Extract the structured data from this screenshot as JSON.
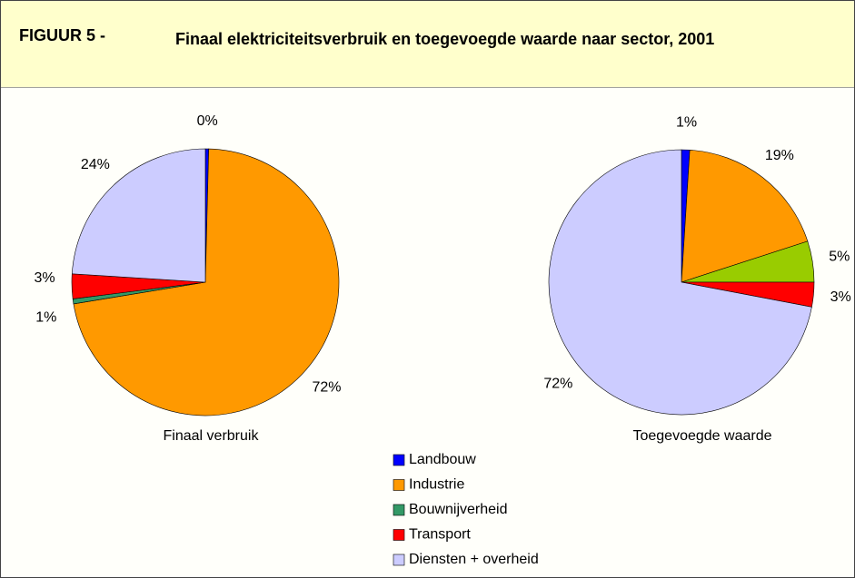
{
  "figure": "FIGUUR 5 -",
  "title": "Finaal elektriciteitsverbruik en toegevoegde waarde naar sector, 2001",
  "chart_data": [
    {
      "type": "pie",
      "label": "Finaal verbruik",
      "categories": [
        "Landbouw",
        "Industrie",
        "Bouwnijverheid",
        "Transport",
        "Diensten + overheid"
      ],
      "values": [
        0.4,
        72,
        0.6,
        3,
        24
      ],
      "value_labels": [
        "0%",
        "72%",
        "1%",
        "3%",
        "24%"
      ],
      "colors": [
        "#0000ff",
        "#ff9900",
        "#339966",
        "#ff0000",
        "#ccccff"
      ]
    },
    {
      "type": "pie",
      "label": "Toegevoegde waarde",
      "categories": [
        "Landbouw",
        "Industrie",
        "Bouwnijverheid",
        "Transport",
        "Diensten + overheid"
      ],
      "values": [
        1,
        19,
        5,
        3,
        72
      ],
      "value_labels": [
        "1%",
        "19%",
        "5%",
        "3%",
        "72%"
      ],
      "colors": [
        "#0000ff",
        "#ff9900",
        "#99cc00",
        "#ff0000",
        "#ccccff"
      ]
    }
  ]
}
